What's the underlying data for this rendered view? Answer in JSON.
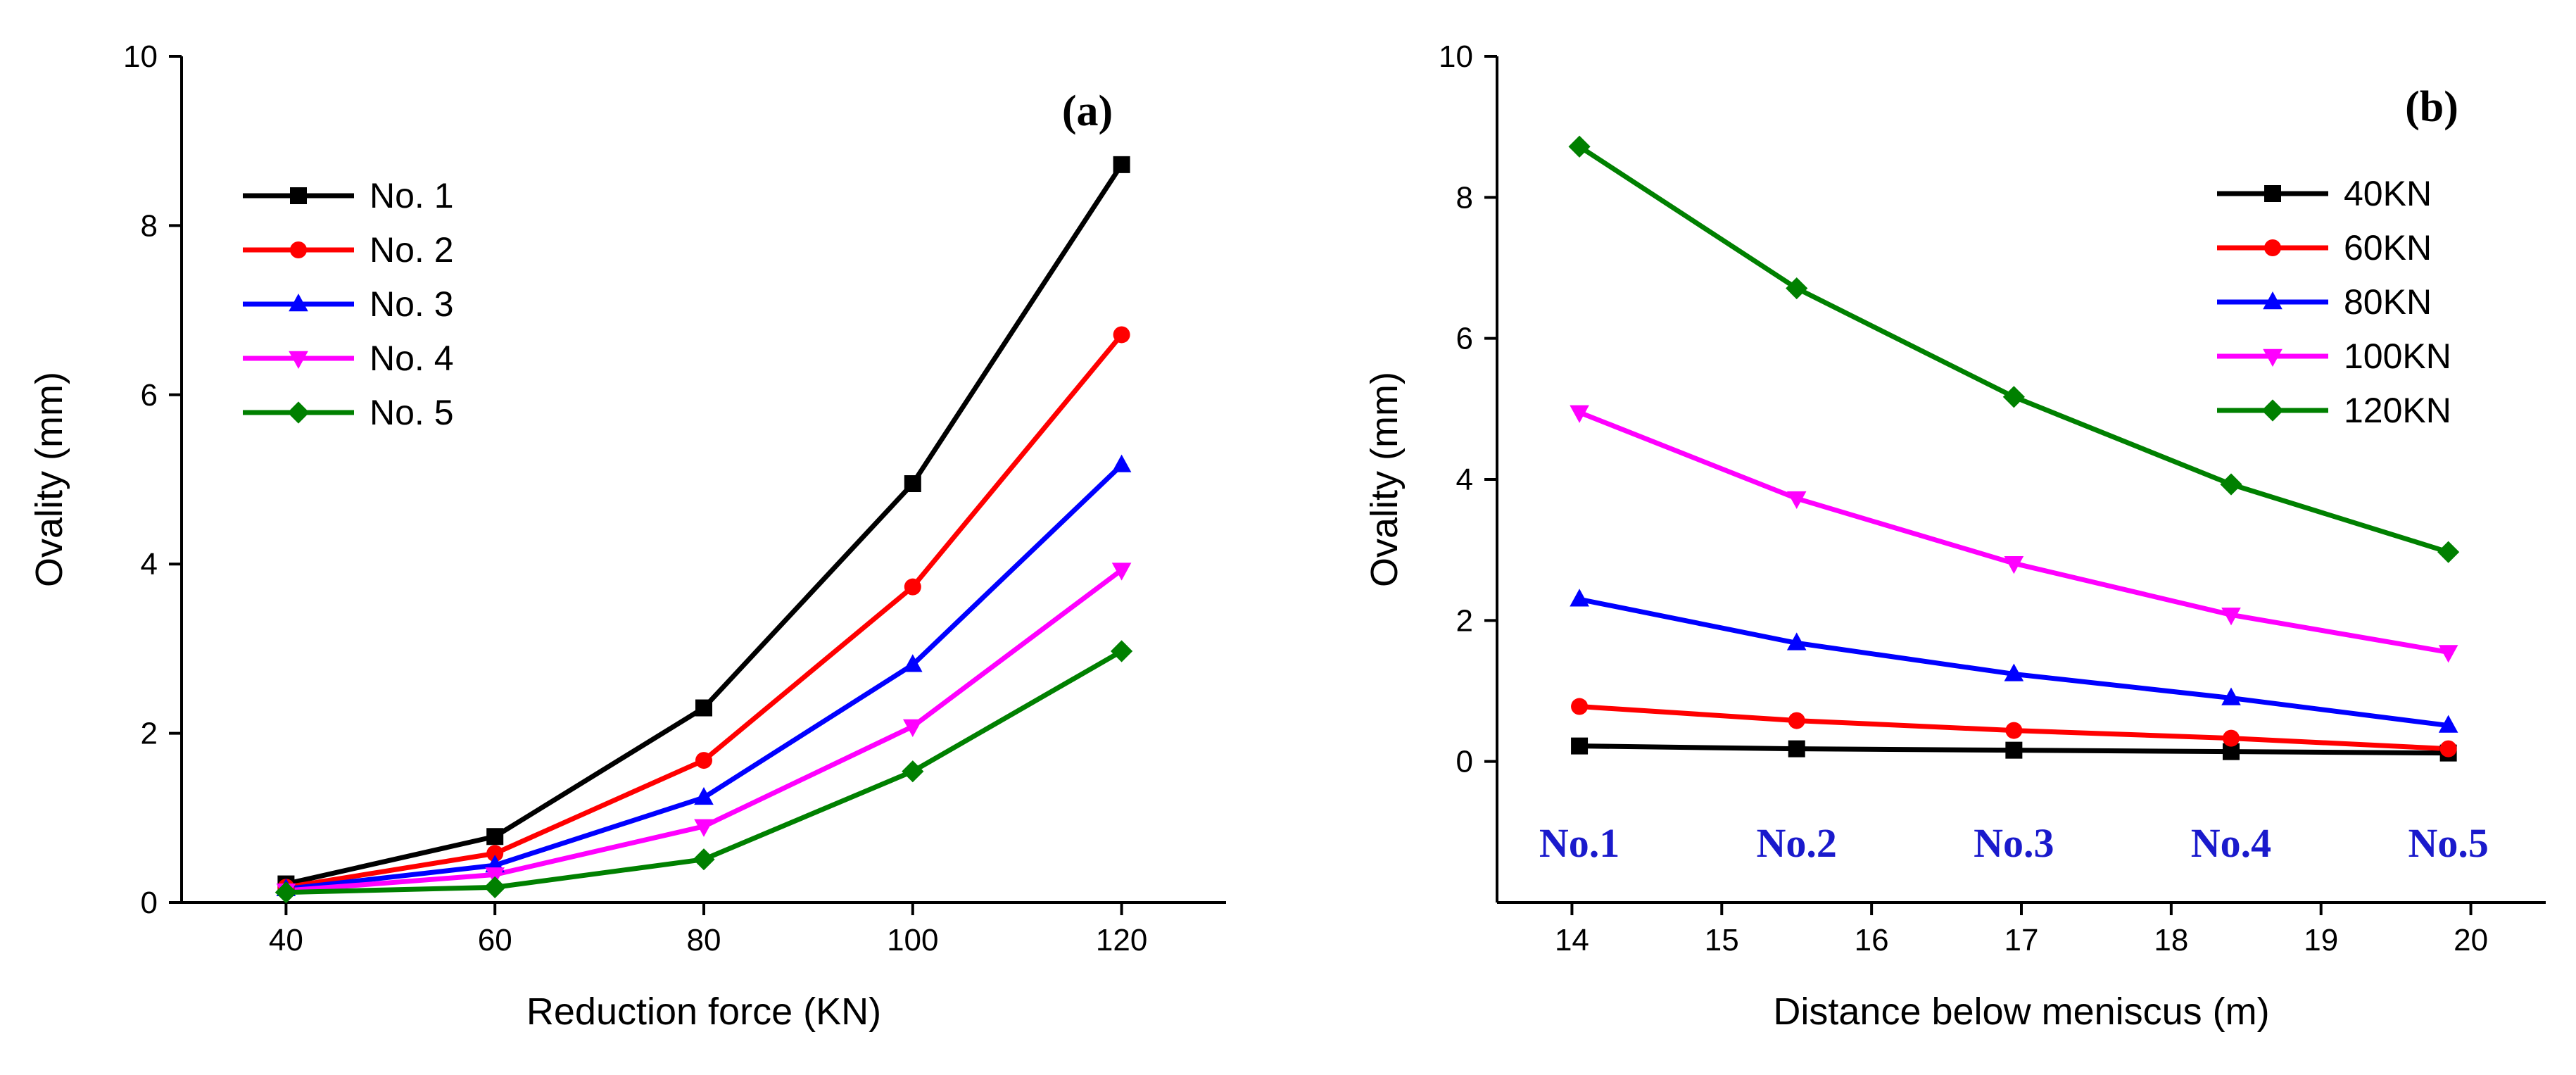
{
  "chart_data": [
    {
      "type": "line",
      "panel_label": "(a)",
      "xlabel": "Reduction force (KN)",
      "ylabel": "Ovality (mm)",
      "xlim": [
        30,
        130
      ],
      "ylim": [
        0,
        10
      ],
      "xticks": [
        40,
        60,
        80,
        100,
        120
      ],
      "yticks": [
        0,
        2,
        4,
        6,
        8,
        10
      ],
      "legend_position": "upper-left",
      "x": [
        40,
        60,
        80,
        100,
        120
      ],
      "series": [
        {
          "name": "No. 1",
          "color": "#000000",
          "marker": "square",
          "values": [
            0.22,
            0.78,
            2.3,
            4.95,
            8.72
          ]
        },
        {
          "name": "No. 2",
          "color": "#ff0000",
          "marker": "circle",
          "values": [
            0.18,
            0.58,
            1.68,
            3.73,
            6.71
          ]
        },
        {
          "name": "No. 3",
          "color": "#0000ff",
          "marker": "triangle-up",
          "values": [
            0.16,
            0.44,
            1.24,
            2.81,
            5.17
          ]
        },
        {
          "name": "No. 4",
          "color": "#ff00ff",
          "marker": "triangle-down",
          "values": [
            0.14,
            0.33,
            0.9,
            2.08,
            3.93
          ]
        },
        {
          "name": "No. 5",
          "color": "#008000",
          "marker": "diamond",
          "values": [
            0.12,
            0.18,
            0.51,
            1.55,
            2.97
          ]
        }
      ]
    },
    {
      "type": "line",
      "panel_label": "(b)",
      "xlabel": "Distance below meniscus (m)",
      "ylabel": "Ovality (mm)",
      "xlim": [
        13.5,
        20.5
      ],
      "ylim": [
        -2,
        10
      ],
      "xticks": [
        14,
        15,
        16,
        17,
        18,
        19,
        20
      ],
      "yticks": [
        0,
        2,
        4,
        6,
        8,
        10
      ],
      "legend_position": "upper-right",
      "x": [
        14.05,
        15.5,
        16.95,
        18.4,
        19.85
      ],
      "annotations": [
        {
          "text": "No.1",
          "x": 14.05,
          "y": -1.15
        },
        {
          "text": "No.2",
          "x": 15.5,
          "y": -1.15
        },
        {
          "text": "No.3",
          "x": 16.95,
          "y": -1.15
        },
        {
          "text": "No.4",
          "x": 18.4,
          "y": -1.15
        },
        {
          "text": "No.5",
          "x": 19.85,
          "y": -1.15
        }
      ],
      "series": [
        {
          "name": "40KN",
          "color": "#000000",
          "marker": "square",
          "values": [
            0.22,
            0.18,
            0.16,
            0.14,
            0.12
          ]
        },
        {
          "name": "60KN",
          "color": "#ff0000",
          "marker": "circle",
          "values": [
            0.78,
            0.58,
            0.44,
            0.33,
            0.18
          ]
        },
        {
          "name": "80KN",
          "color": "#0000ff",
          "marker": "triangle-up",
          "values": [
            2.3,
            1.68,
            1.24,
            0.9,
            0.51
          ]
        },
        {
          "name": "100KN",
          "color": "#ff00ff",
          "marker": "triangle-down",
          "values": [
            4.95,
            3.73,
            2.81,
            2.08,
            1.55
          ]
        },
        {
          "name": "120KN",
          "color": "#008000",
          "marker": "diamond",
          "values": [
            8.72,
            6.71,
            5.17,
            3.93,
            2.97
          ]
        }
      ]
    }
  ]
}
